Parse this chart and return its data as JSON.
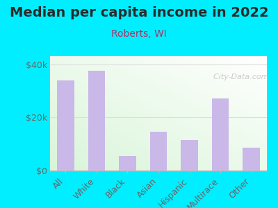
{
  "title": "Median per capita income in 2022",
  "subtitle": "Roberts, WI",
  "categories": [
    "All",
    "White",
    "Black",
    "Asian",
    "Hispanic",
    "Multirace",
    "Other"
  ],
  "values": [
    34000,
    37500,
    5500,
    14500,
    11500,
    27000,
    8500
  ],
  "bar_color": "#c9b8e8",
  "background_outer": "#00eeff",
  "title_color": "#2a2a2a",
  "subtitle_color": "#aa3366",
  "tick_label_color": "#666666",
  "ylim": [
    0,
    43000
  ],
  "yticks": [
    0,
    20000,
    40000
  ],
  "ytick_labels": [
    "$0",
    "$20k",
    "$40k"
  ],
  "watermark": "  City-Data.com",
  "title_fontsize": 14,
  "subtitle_fontsize": 10,
  "tick_fontsize": 9,
  "grid_color": "#dddddd",
  "spine_color": "#bbbbbb"
}
